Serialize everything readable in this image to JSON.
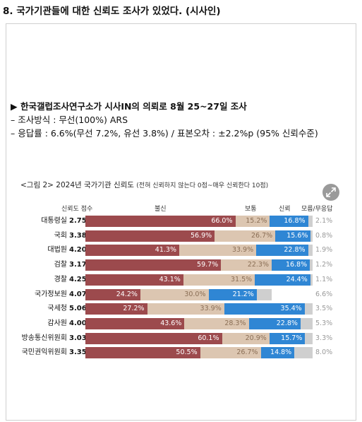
{
  "question_title": "8. 국가기관들에 대한 신뢰도 조사가 있었다. (시사인)",
  "survey": {
    "line1": "▶ 한국갤럽조사연구소가 시사IN의 의뢰로 8월 25~27일 조사",
    "line2": "– 조사방식 : 무선(100%) ARS",
    "line3": "– 응답률 : 6.6%(무선 7.2%, 유선 3.8%) / 표본오차 : ±2.2%p (95% 신뢰수준)"
  },
  "caption": {
    "main": "<그림 2> 2024년 국가기관 신뢰도",
    "sub": "(전혀 신뢰하지 않는다 0점~매우 신뢰한다 10점)"
  },
  "headers": {
    "score": "신뢰도 점수",
    "distrust": "불신",
    "neutral": "보통",
    "trust": "신뢰",
    "unknown": "모름/무응답"
  },
  "colors": {
    "distrust": "#9c4a4d",
    "neutral": "#dcc6b1",
    "trust": "#2f86d4",
    "unknown": "#cfcfcf"
  },
  "icon": "expand-icon",
  "chart_data": {
    "type": "bar",
    "stacked": true,
    "orientation": "horizontal",
    "title": "<그림 2> 2024년 국가기관 신뢰도",
    "subtitle": "(전혀 신뢰하지 않는다 0점~매우 신뢰한다 10점)",
    "categories": [
      "대통령실",
      "국회",
      "대법원",
      "검찰",
      "경찰",
      "국가정보원",
      "국세청",
      "감사원",
      "방송통신위원회",
      "국민권익위원회"
    ],
    "scores": [
      "2.75",
      "3.38",
      "4.20",
      "3.17",
      "4.25",
      "4.07",
      "5.06",
      "4.00",
      "3.03",
      "3.35"
    ],
    "series": [
      {
        "name": "불신",
        "values": [
          66.0,
          56.9,
          41.3,
          59.7,
          43.1,
          24.2,
          27.2,
          43.6,
          60.1,
          50.5
        ],
        "labels": [
          "66.0%",
          "56.9%",
          "41.3%",
          "59.7%",
          "43.1%",
          "24.2%",
          "27.2%",
          "43.6%",
          "60.1%",
          "50.5%"
        ]
      },
      {
        "name": "보통",
        "values": [
          15.2,
          26.7,
          33.9,
          22.3,
          31.5,
          30.0,
          33.9,
          28.3,
          20.9,
          26.7
        ],
        "labels": [
          "15.2%",
          "26.7%",
          "33.9%",
          "22.3%",
          "31.5%",
          "30.0%",
          "33.9%",
          "28.3%",
          "20.9%",
          "26.7%"
        ]
      },
      {
        "name": "신뢰",
        "values": [
          16.8,
          15.6,
          22.8,
          16.8,
          24.4,
          21.2,
          35.4,
          22.8,
          15.7,
          14.8
        ],
        "labels": [
          "16.8%",
          "15.6%",
          "22.8%",
          "16.8%",
          "24.4%",
          "21.2%",
          "35.4%",
          "22.8%",
          "15.7%",
          "14.8%"
        ]
      },
      {
        "name": "모름/무응답",
        "values": [
          2.1,
          0.8,
          1.9,
          1.2,
          1.1,
          6.6,
          3.5,
          5.3,
          3.3,
          8.0
        ],
        "labels": [
          "2.1%",
          "0.8%",
          "1.9%",
          "1.2%",
          "1.1%",
          "6.6%",
          "3.5%",
          "5.3%",
          "3.3%",
          "8.0%"
        ]
      }
    ],
    "xlim": [
      0,
      100
    ]
  }
}
